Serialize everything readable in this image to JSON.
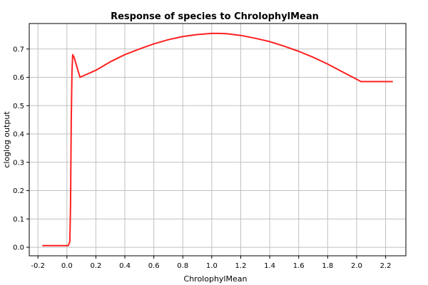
{
  "chart_data": {
    "type": "line",
    "title": "Response of species to ChrolophylMean",
    "xlabel": "ChrolophylMean",
    "ylabel": "cloglog output",
    "xlim": [
      -0.26,
      2.34
    ],
    "ylim": [
      -0.03,
      0.79
    ],
    "xticks": [
      "-0.2",
      "0.0",
      "0.2",
      "0.4",
      "0.6",
      "0.8",
      "1.0",
      "1.2",
      "1.4",
      "1.6",
      "1.8",
      "2.0",
      "2.2"
    ],
    "xtick_values": [
      -0.2,
      0.0,
      0.2,
      0.4,
      0.6,
      0.8,
      1.0,
      1.2,
      1.4,
      1.6,
      1.8,
      2.0,
      2.2
    ],
    "yticks": [
      "0.0",
      "0.1",
      "0.2",
      "0.3",
      "0.4",
      "0.5",
      "0.6",
      "0.7"
    ],
    "ytick_values": [
      0.0,
      0.1,
      0.2,
      0.3,
      0.4,
      0.5,
      0.6,
      0.7
    ],
    "grid": true,
    "series": [
      {
        "color": "#ff2020",
        "x": [
          -0.17,
          0.01,
          0.02,
          0.025,
          0.03,
          0.035,
          0.04,
          0.05,
          0.09,
          0.2,
          0.3,
          0.4,
          0.5,
          0.6,
          0.7,
          0.8,
          0.9,
          1.0,
          1.05,
          1.1,
          1.2,
          1.3,
          1.4,
          1.5,
          1.6,
          1.7,
          1.8,
          1.9,
          2.0,
          2.03,
          2.25
        ],
        "y": [
          0.006,
          0.006,
          0.02,
          0.15,
          0.45,
          0.62,
          0.68,
          0.67,
          0.6,
          0.625,
          0.655,
          0.68,
          0.7,
          0.718,
          0.733,
          0.744,
          0.751,
          0.755,
          0.755,
          0.754,
          0.748,
          0.738,
          0.726,
          0.71,
          0.692,
          0.671,
          0.647,
          0.62,
          0.593,
          0.585,
          0.585
        ]
      }
    ]
  }
}
